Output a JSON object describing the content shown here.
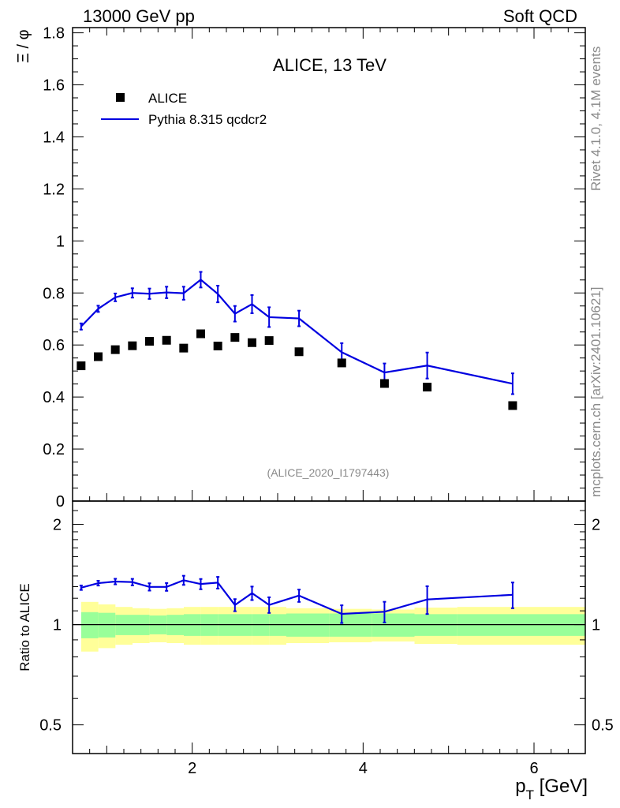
{
  "header": {
    "left": "13000 GeV pp",
    "right": "Soft QCD",
    "side_top": "Rivet 4.1.0,  4.1M events",
    "side_bottom": "mcplots.cern.ch [arXiv:2401.10621]"
  },
  "colors": {
    "data": "#000000",
    "mc": "#0000e0",
    "band_inner": "#99ff99",
    "band_outer": "#ffff99"
  },
  "chart_data": {
    "type": "scatter",
    "title": "ALICE, 13 TeV",
    "analysis_id": "(ALICE_2020_I1797443)",
    "xlabel": "p_T [GeV]",
    "xlabel_main": "p",
    "xlabel_sub": "T",
    "xlabel_unit": " [GeV]",
    "ylabel": "Ξ / φ",
    "ratio_ylabel": "Ratio to ALICE",
    "xlim": [
      0.6,
      6.6
    ],
    "ylim": [
      0,
      1.82
    ],
    "ratio_ylim": [
      0.41,
      2.35
    ],
    "x_ticks": [
      {
        "v": 2,
        "label": "2"
      },
      {
        "v": 4,
        "label": "4"
      },
      {
        "v": 6,
        "label": "6"
      }
    ],
    "y_ticks": [
      {
        "v": 0,
        "label": "0"
      },
      {
        "v": 0.2,
        "label": "0.2"
      },
      {
        "v": 0.4,
        "label": "0.4"
      },
      {
        "v": 0.6,
        "label": "0.6"
      },
      {
        "v": 0.8,
        "label": "0.8"
      },
      {
        "v": 1.0,
        "label": "1"
      },
      {
        "v": 1.2,
        "label": "1.2"
      },
      {
        "v": 1.4,
        "label": "1.4"
      },
      {
        "v": 1.6,
        "label": "1.6"
      },
      {
        "v": 1.8,
        "label": "1.8"
      }
    ],
    "ratio_ticks": [
      {
        "v": 0.5,
        "label": "0.5"
      },
      {
        "v": 1,
        "label": "1"
      },
      {
        "v": 2,
        "label": "2"
      }
    ],
    "bins": {
      "x": [
        0.7,
        0.9,
        1.1,
        1.3,
        1.5,
        1.7,
        1.9,
        2.1,
        2.3,
        2.5,
        2.7,
        2.9,
        3.25,
        3.75,
        4.25,
        4.75,
        5.75
      ],
      "lo": [
        0.6,
        0.8,
        1.0,
        1.2,
        1.4,
        1.6,
        1.8,
        2.0,
        2.2,
        2.4,
        2.6,
        2.8,
        3.0,
        3.5,
        4.0,
        4.5,
        5.0
      ],
      "hi": [
        0.8,
        1.0,
        1.2,
        1.4,
        1.6,
        1.8,
        2.0,
        2.2,
        2.4,
        2.6,
        2.8,
        3.0,
        3.5,
        4.0,
        4.5,
        5.0,
        6.5
      ]
    },
    "series": [
      {
        "name": "ALICE",
        "kind": "data",
        "values": [
          0.52,
          0.555,
          0.582,
          0.597,
          0.614,
          0.618,
          0.588,
          0.643,
          0.596,
          0.629,
          0.609,
          0.617,
          0.574,
          0.531,
          0.452,
          0.438,
          0.367
        ]
      },
      {
        "name": "Pythia 8.315 qcdcr2",
        "kind": "mc",
        "values": [
          0.671,
          0.739,
          0.783,
          0.8,
          0.797,
          0.802,
          0.799,
          0.851,
          0.796,
          0.72,
          0.757,
          0.707,
          0.702,
          0.572,
          0.494,
          0.521,
          0.451
        ],
        "errors": [
          0.012,
          0.012,
          0.015,
          0.018,
          0.02,
          0.022,
          0.025,
          0.03,
          0.032,
          0.03,
          0.035,
          0.038,
          0.03,
          0.035,
          0.035,
          0.05,
          0.04
        ]
      }
    ],
    "ratio": {
      "values": [
        1.291,
        1.332,
        1.347,
        1.342,
        1.298,
        1.298,
        1.359,
        1.324,
        1.337,
        1.145,
        1.243,
        1.146,
        1.222,
        1.077,
        1.093,
        1.19,
        1.229
      ],
      "errors": [
        0.02,
        0.022,
        0.026,
        0.03,
        0.033,
        0.035,
        0.043,
        0.047,
        0.054,
        0.048,
        0.058,
        0.062,
        0.052,
        0.066,
        0.078,
        0.114,
        0.109
      ],
      "band_inner": [
        0.09,
        0.085,
        0.07,
        0.07,
        0.065,
        0.07,
        0.075,
        0.075,
        0.075,
        0.075,
        0.075,
        0.075,
        0.08,
        0.08,
        0.08,
        0.075,
        0.075
      ],
      "band_outer": [
        0.17,
        0.15,
        0.13,
        0.12,
        0.115,
        0.12,
        0.13,
        0.13,
        0.13,
        0.13,
        0.13,
        0.13,
        0.12,
        0.115,
        0.11,
        0.125,
        0.13
      ]
    }
  }
}
